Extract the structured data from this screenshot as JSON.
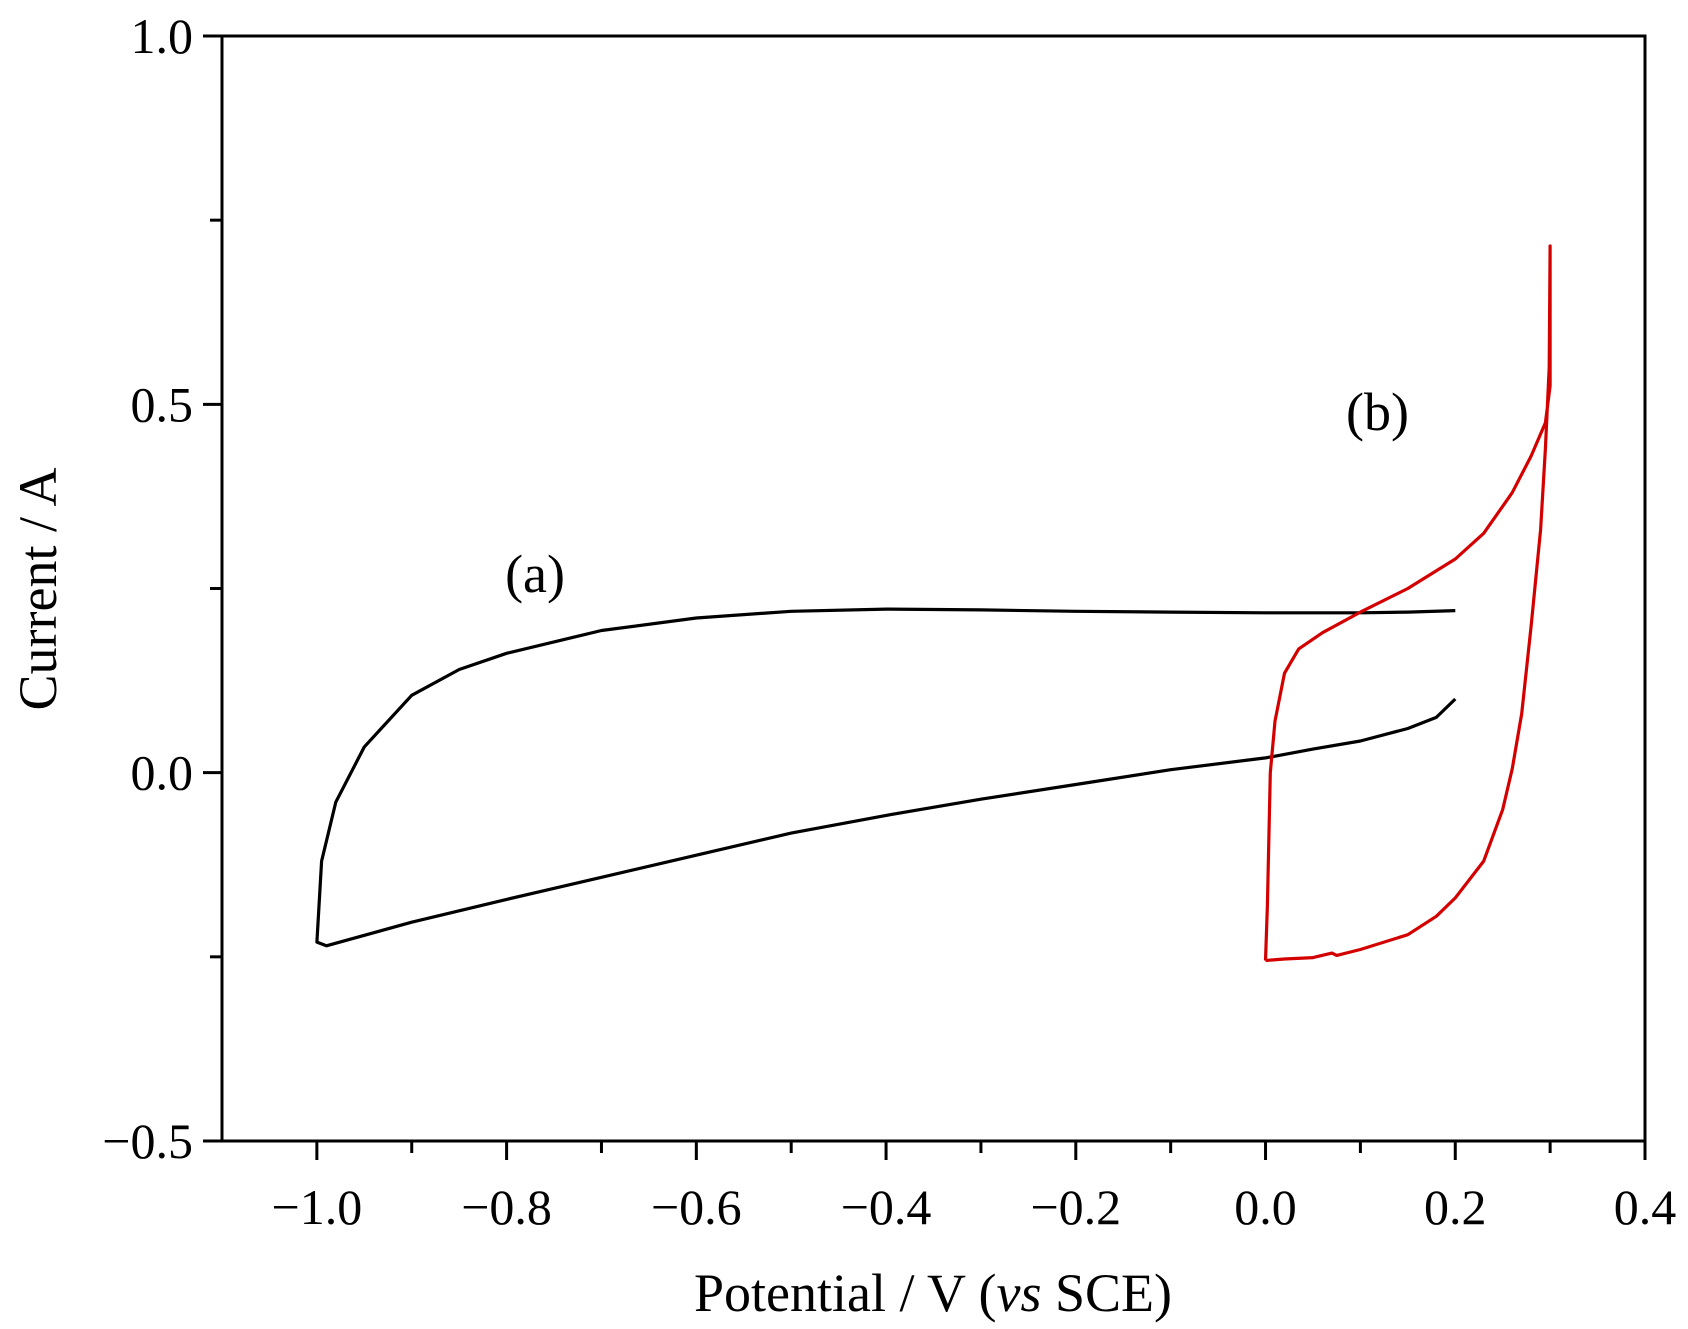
{
  "chart_data": {
    "type": "line",
    "title": "",
    "xlabel_parts": [
      "Potential / V (",
      "vs",
      " SCE)"
    ],
    "ylabel": "Current / A",
    "xlim": [
      -1.1,
      0.4
    ],
    "ylim": [
      -0.5,
      1.0
    ],
    "xticks": [
      -1.0,
      -0.8,
      -0.6,
      -0.4,
      -0.2,
      0.0,
      0.2,
      0.4
    ],
    "xtick_labels": [
      "−1.0",
      "−0.8",
      "−0.6",
      "−0.4",
      "−0.2",
      "0.0",
      "0.2",
      "0.4"
    ],
    "xticks_minor": [
      -0.9,
      -0.7,
      -0.5,
      -0.3,
      -0.1,
      0.1,
      0.3
    ],
    "yticks": [
      -0.5,
      0.0,
      0.5,
      1.0
    ],
    "ytick_labels": [
      "−0.5",
      "0.0",
      "0.5",
      "1.0"
    ],
    "yticks_minor": [
      -0.25,
      0.25,
      0.75
    ],
    "grid": false,
    "legend": "none",
    "annotations": [
      {
        "text": "(a)",
        "x": -0.77,
        "y": 0.245
      },
      {
        "text": "(b)",
        "x": 0.118,
        "y": 0.465
      }
    ],
    "series": [
      {
        "color": "#000000",
        "points": [
          [
            0.2,
            0.22
          ],
          [
            0.15,
            0.218
          ],
          [
            0.1,
            0.217
          ],
          [
            0.0,
            0.217
          ],
          [
            -0.1,
            0.218
          ],
          [
            -0.2,
            0.219
          ],
          [
            -0.3,
            0.221
          ],
          [
            -0.4,
            0.222
          ],
          [
            -0.5,
            0.219
          ],
          [
            -0.6,
            0.21
          ],
          [
            -0.7,
            0.193
          ],
          [
            -0.8,
            0.162
          ],
          [
            -0.85,
            0.14
          ],
          [
            -0.9,
            0.105
          ],
          [
            -0.95,
            0.035
          ],
          [
            -0.98,
            -0.04
          ],
          [
            -0.995,
            -0.12
          ],
          [
            -1.0,
            -0.23
          ],
          [
            -0.99,
            -0.235
          ],
          [
            -0.9,
            -0.203
          ],
          [
            -0.8,
            -0.172
          ],
          [
            -0.7,
            -0.142
          ],
          [
            -0.6,
            -0.112
          ],
          [
            -0.5,
            -0.082
          ],
          [
            -0.4,
            -0.058
          ],
          [
            -0.3,
            -0.036
          ],
          [
            -0.2,
            -0.016
          ],
          [
            -0.1,
            0.004
          ],
          [
            0.0,
            0.02
          ],
          [
            0.05,
            0.032
          ],
          [
            0.1,
            0.043
          ],
          [
            0.15,
            0.06
          ],
          [
            0.18,
            0.075
          ],
          [
            0.2,
            0.1
          ]
        ]
      },
      {
        "color": "#d40000",
        "points": [
          [
            0.0,
            -0.255
          ],
          [
            0.002,
            -0.18
          ],
          [
            0.005,
            0.0
          ],
          [
            0.01,
            0.07
          ],
          [
            0.02,
            0.135
          ],
          [
            0.035,
            0.168
          ],
          [
            0.06,
            0.19
          ],
          [
            0.1,
            0.218
          ],
          [
            0.15,
            0.25
          ],
          [
            0.2,
            0.29
          ],
          [
            0.23,
            0.325
          ],
          [
            0.26,
            0.38
          ],
          [
            0.28,
            0.43
          ],
          [
            0.295,
            0.475
          ],
          [
            0.3,
            0.525
          ],
          [
            0.3,
            0.715
          ],
          [
            0.299,
            0.55
          ],
          [
            0.295,
            0.44
          ],
          [
            0.29,
            0.33
          ],
          [
            0.28,
            0.2
          ],
          [
            0.27,
            0.08
          ],
          [
            0.26,
            0.005
          ],
          [
            0.25,
            -0.05
          ],
          [
            0.23,
            -0.12
          ],
          [
            0.2,
            -0.17
          ],
          [
            0.18,
            -0.195
          ],
          [
            0.15,
            -0.22
          ],
          [
            0.1,
            -0.24
          ],
          [
            0.075,
            -0.248
          ],
          [
            0.07,
            -0.245
          ],
          [
            0.05,
            -0.251
          ],
          [
            0.02,
            -0.253
          ],
          [
            0.0,
            -0.255
          ]
        ]
      }
    ]
  }
}
